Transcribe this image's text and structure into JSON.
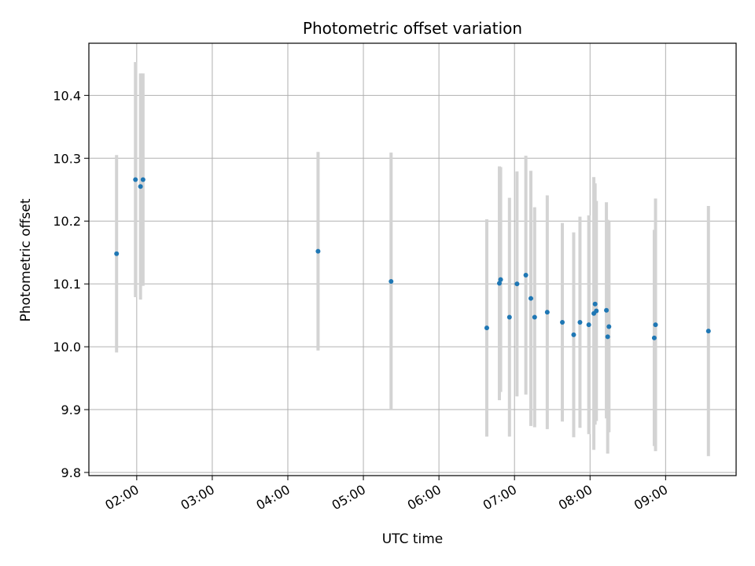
{
  "chart_data": {
    "type": "scatter",
    "title": "Photometric offset variation",
    "xlabel": "UTC time",
    "ylabel": "Photometric offset",
    "grid": true,
    "xlim": [
      "01:22",
      "09:56"
    ],
    "ylim": [
      9.795,
      10.483
    ],
    "x_ticks": [
      "02:00",
      "03:00",
      "04:00",
      "05:00",
      "06:00",
      "07:00",
      "08:00",
      "09:00"
    ],
    "y_ticks": [
      "9.8",
      "9.9",
      "10.0",
      "10.1",
      "10.2",
      "10.3",
      "10.4"
    ],
    "colors": {
      "points": "#1f77b4",
      "errorbars": "#d3d3d3",
      "grid": "#b0b0b0"
    },
    "points": [
      {
        "x": "01:44",
        "y": 10.148,
        "err": 0.157
      },
      {
        "x": "01:59",
        "y": 10.266,
        "err": 0.187
      },
      {
        "x": "02:03",
        "y": 10.255,
        "err": 0.18
      },
      {
        "x": "02:05",
        "y": 10.266,
        "err": 0.169
      },
      {
        "x": "04:24",
        "y": 10.152,
        "err": 0.158
      },
      {
        "x": "05:22",
        "y": 10.104,
        "err": 0.205
      },
      {
        "x": "06:38",
        "y": 10.03,
        "err": 0.173
      },
      {
        "x": "06:48",
        "y": 10.101,
        "err": 0.186
      },
      {
        "x": "06:49",
        "y": 10.107,
        "err": 0.179
      },
      {
        "x": "06:56",
        "y": 10.047,
        "err": 0.19
      },
      {
        "x": "07:02",
        "y": 10.1,
        "err": 0.179
      },
      {
        "x": "07:09",
        "y": 10.114,
        "err": 0.19
      },
      {
        "x": "07:13",
        "y": 10.077,
        "err": 0.203
      },
      {
        "x": "07:16",
        "y": 10.047,
        "err": 0.175
      },
      {
        "x": "07:26",
        "y": 10.055,
        "err": 0.186
      },
      {
        "x": "07:38",
        "y": 10.039,
        "err": 0.158
      },
      {
        "x": "07:47",
        "y": 10.019,
        "err": 0.163
      },
      {
        "x": "07:52",
        "y": 10.039,
        "err": 0.168
      },
      {
        "x": "07:59",
        "y": 10.035,
        "err": 0.174
      },
      {
        "x": "08:03",
        "y": 10.053,
        "err": 0.217
      },
      {
        "x": "08:04",
        "y": 10.068,
        "err": 0.192
      },
      {
        "x": "08:05",
        "y": 10.057,
        "err": 0.175
      },
      {
        "x": "08:13",
        "y": 10.058,
        "err": 0.172
      },
      {
        "x": "08:14",
        "y": 10.016,
        "err": 0.186
      },
      {
        "x": "08:15",
        "y": 10.032,
        "err": 0.168
      },
      {
        "x": "08:51",
        "y": 10.014,
        "err": 0.172
      },
      {
        "x": "08:52",
        "y": 10.035,
        "err": 0.201
      },
      {
        "x": "09:34",
        "y": 10.025,
        "err": 0.199
      }
    ]
  }
}
